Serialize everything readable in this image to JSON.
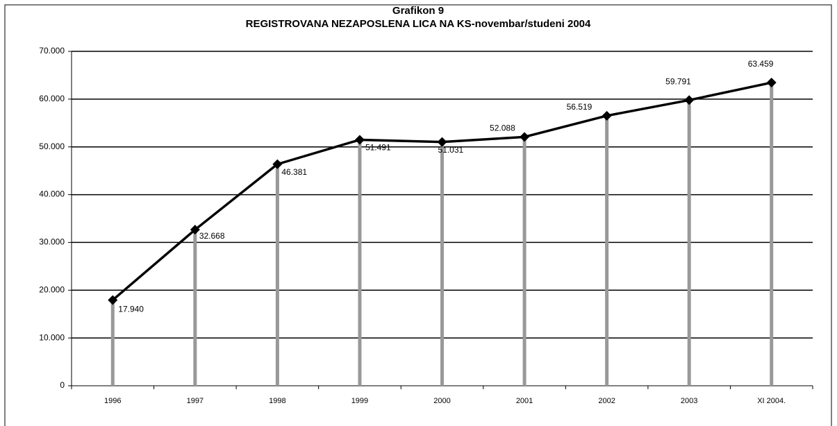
{
  "chart_data": {
    "type": "line",
    "title": "Grafikon 9",
    "subtitle": "REGISTROVANA NEZAPOSLENA LICA NA KS-novembar/studeni 2004",
    "categories": [
      "1996",
      "1997",
      "1998",
      "1999",
      "2000",
      "2001",
      "2002",
      "2003",
      "XI 2004."
    ],
    "values": [
      17940,
      32668,
      46381,
      51491,
      51031,
      52088,
      56519,
      59791,
      63459
    ],
    "value_labels": [
      "17.940",
      "32.668",
      "46.381",
      "51.491",
      "51.031",
      "52.088",
      "56.519",
      "59.791",
      "63.459"
    ],
    "color": "#000000",
    "drop_lines": true,
    "drop_line_color": "#999999",
    "ylim": [
      0,
      70000
    ],
    "yticks": [
      0,
      {
        "value": 10000,
        "label": "10.000"
      },
      {
        "value": 20000,
        "label": "20.000"
      },
      {
        "value": 30000,
        "label": "30.000"
      },
      {
        "value": 40000,
        "label": "40.000"
      },
      {
        "value": 50000,
        "label": "50.000"
      },
      {
        "value": 60000,
        "label": "60.000"
      },
      {
        "value": 70000,
        "label": "70.000"
      }
    ],
    "grid": true
  }
}
